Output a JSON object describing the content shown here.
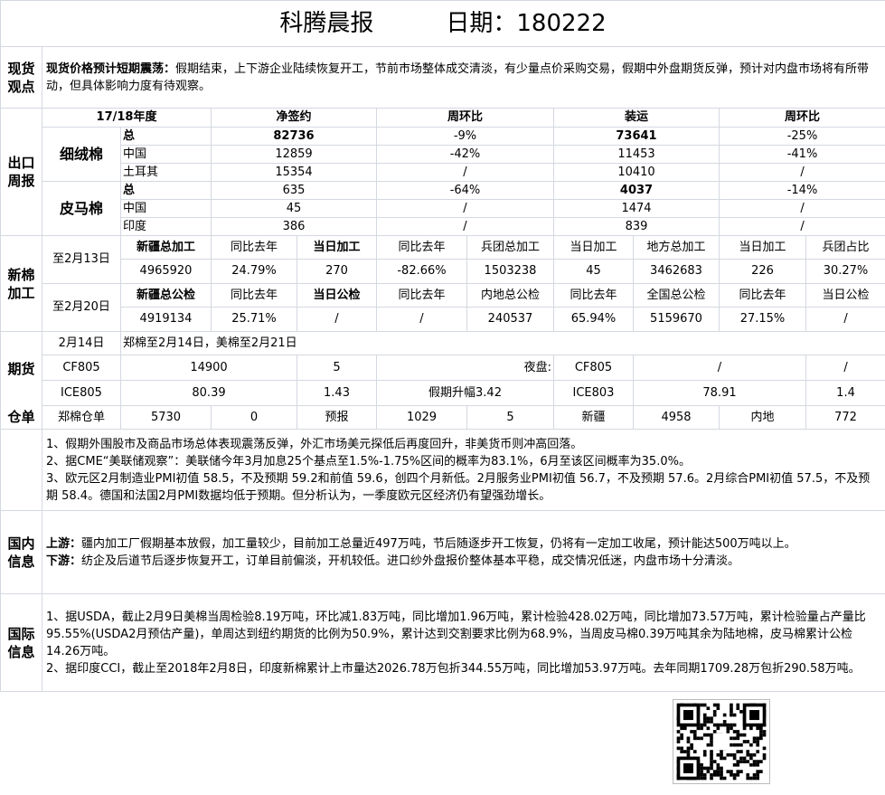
{
  "title": {
    "name": "科腾晨报",
    "date_label": "日期：",
    "date": "180222"
  },
  "spot": {
    "label": "现货观点",
    "lead": "现货价格预计短期震荡：",
    "text": "假期结束，上下游企业陆续恢复开工，节前市场整体成交清淡，有少量点价采购交易，假期中外盘期货反弹，预计对内盘市场将有所带动，但具体影响力度有待观察。"
  },
  "export": {
    "label": "出口周报",
    "headers": [
      "17/18年度",
      "净签约",
      "周环比",
      "装运",
      "周环比"
    ],
    "groups": [
      {
        "name": "细绒棉",
        "rows": [
          [
            "总",
            "82736",
            "-9%",
            "73641",
            "-25%"
          ],
          [
            "中国",
            "12859",
            "-42%",
            "11453",
            "-41%"
          ],
          [
            "土耳其",
            "15354",
            "/",
            "10410",
            "/"
          ]
        ]
      },
      {
        "name": "皮马棉",
        "rows": [
          [
            "总",
            "635",
            "-64%",
            "4037",
            "-14%"
          ],
          [
            "中国",
            "45",
            "/",
            "1474",
            "/"
          ],
          [
            "印度",
            "386",
            "/",
            "839",
            "/"
          ]
        ]
      }
    ]
  },
  "new_cotton": {
    "label": "新棉加工",
    "blocks": [
      {
        "date": "至2月13日",
        "headers": [
          "新疆总加工",
          "同比去年",
          "当日加工",
          "同比去年",
          "兵团总加工",
          "当日加工",
          "地方总加工",
          "当日加工",
          "兵团占比"
        ],
        "values": [
          "4965920",
          "24.79%",
          "270",
          "-82.66%",
          "1503238",
          "45",
          "3462683",
          "226",
          "30.27%"
        ]
      },
      {
        "date": "至2月20日",
        "headers": [
          "新疆总公检",
          "同比去年",
          "当日公检",
          "同比去年",
          "内地总公检",
          "同比去年",
          "全国总公检",
          "同比去年",
          "当日公检"
        ],
        "values": [
          "4919134",
          "25.71%",
          "/",
          "/",
          "240537",
          "65.94%",
          "5159670",
          "27.15%",
          "/"
        ]
      }
    ]
  },
  "futures": {
    "label": "期货",
    "date": "2月14日",
    "note": "郑棉至2月14日，美棉至2月21日",
    "row1": [
      "CF805",
      "14900",
      "5",
      "夜盘:",
      "CF805",
      "/",
      "/"
    ],
    "row2": [
      "ICE805",
      "80.39",
      "1.43",
      "假期升幅3.42",
      "ICE803",
      "78.91",
      "1.4"
    ]
  },
  "warehouse": {
    "label": "仓单",
    "cells": [
      "郑棉仓单",
      "5730",
      "0",
      "预报",
      "1029",
      "5",
      "新疆",
      "4958",
      "内地",
      "772"
    ]
  },
  "macro": {
    "items": [
      "1、假期外围股市及商品市场总体表现震荡反弹，外汇市场美元探低后再度回升，非美货币则冲高回落。",
      "2、据CME“美联储观察”：美联储今年3月加息25个基点至1.5%-1.75%区间的概率为83.1%，6月至该区间概率为35.0%。",
      "3、欧元区2月制造业PMI初值 58.5，不及预期 59.2和前值 59.6，创四个月新低。2月服务业PMI初值 56.7，不及预期 57.6。2月综合PMI初值 57.5，不及预期 58.4。德国和法国2月PMI数据均低于预期。但分析认为，一季度欧元区经济仍有望强劲增长。"
    ]
  },
  "domestic": {
    "label": "国内信息",
    "upstream_label": "上游：",
    "upstream": "疆内加工厂假期基本放假，加工量较少，目前加工总量近497万吨，节后随逐步开工恢复，仍将有一定加工收尾，预计能达500万吨以上。",
    "downstream_label": "下游：",
    "downstream": "纺企及后道节后逐步恢复开工，订单目前偏淡，开机较低。进口纱外盘报价整体基本平稳，成交情况低迷，内盘市场十分清淡。"
  },
  "international": {
    "label": "国际信息",
    "items": [
      "1、据USDA，截止2月9日美棉当周检验8.19万吨，环比减1.83万吨，同比增加1.96万吨，累计检验428.02万吨，同比增加73.57万吨，累计检验量占产量比95.55%(USDA2月预估产量)，单周达到纽约期货的比例为50.9%，累计达到交割要求比例为68.9%，当周皮马棉0.39万吨其余为陆地棉，皮马棉累计公检14.26万吨。",
      "2、据印度CCI，截止至2018年2月8日，印度新棉累计上市量达2026.78万包折344.55万吨，同比增加53.97万吨。去年同期1709.28万包折290.58万吨。"
    ]
  }
}
